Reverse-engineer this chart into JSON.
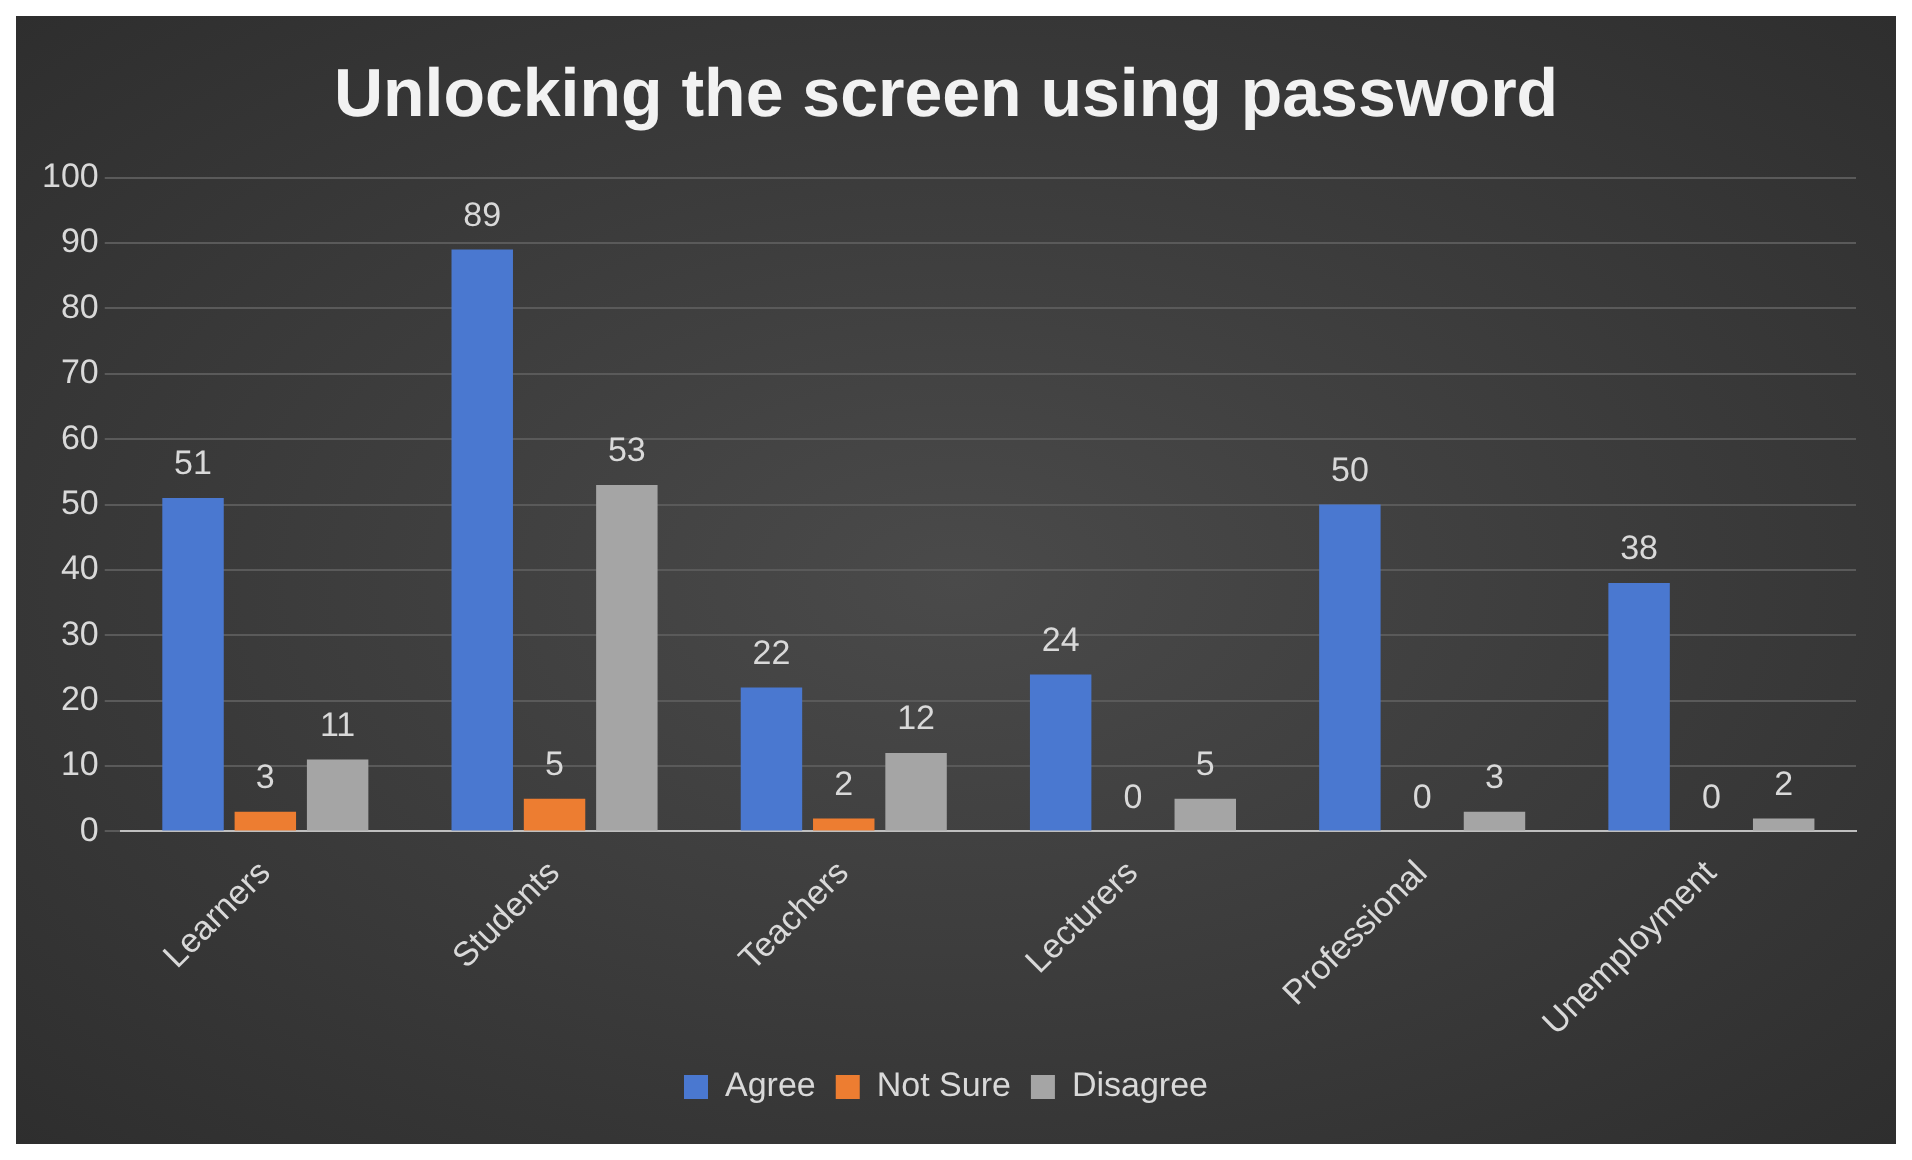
{
  "chart_data": {
    "type": "bar",
    "title": "Unlocking the screen using password",
    "categories": [
      "Learners",
      "Students",
      "Teachers",
      "Lecturers",
      "Professional",
      "Unemployment"
    ],
    "series": [
      {
        "name": "Agree",
        "color": "#4a78d0",
        "values": [
          51,
          89,
          22,
          24,
          50,
          38
        ]
      },
      {
        "name": "Not Sure",
        "color": "#ed7d31",
        "values": [
          3,
          5,
          2,
          0,
          0,
          0
        ]
      },
      {
        "name": "Disagree",
        "color": "#a5a5a5",
        "values": [
          11,
          53,
          12,
          5,
          3,
          2
        ]
      }
    ],
    "ylim": [
      0,
      100
    ],
    "yticks": [
      0,
      10,
      20,
      30,
      40,
      50,
      60,
      70,
      80,
      90,
      100
    ],
    "grid": "y",
    "legend": "bottom",
    "data_labels": true
  }
}
